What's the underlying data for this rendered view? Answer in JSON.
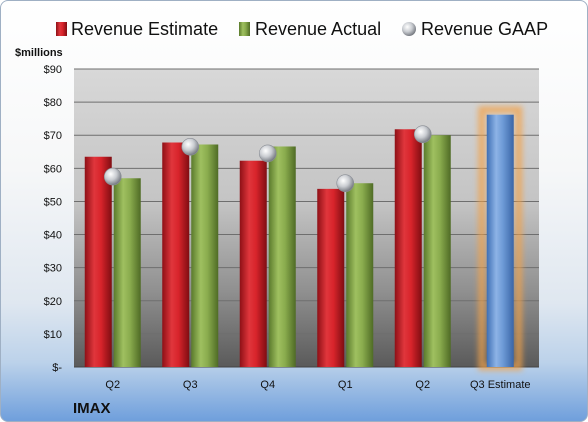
{
  "chart_data": {
    "type": "bar",
    "unit_label": "$millions",
    "company": "IMAX",
    "categories": [
      "Q2",
      "Q3",
      "Q4",
      "Q1",
      "Q2",
      "Q3 Estimate"
    ],
    "ylim": [
      0,
      90
    ],
    "y_ticks": [
      "$-",
      "$10",
      "$20",
      "$30",
      "$40",
      "$50",
      "$60",
      "$70",
      "$80",
      "$90"
    ],
    "y_tick_values": [
      0,
      10,
      20,
      30,
      40,
      50,
      60,
      70,
      80,
      90
    ],
    "grid": true,
    "legend_position": "top",
    "series": [
      {
        "name": "Revenue Estimate",
        "kind": "bar",
        "color": "#d8242b",
        "values": [
          63.5,
          67.8,
          62.3,
          53.8,
          71.8,
          null
        ]
      },
      {
        "name": "Revenue Actual",
        "kind": "bar",
        "color": "#8aac4e",
        "values": [
          57.0,
          67.2,
          66.6,
          55.5,
          70.0,
          null
        ]
      },
      {
        "name": "Revenue GAAP",
        "kind": "marker",
        "color": "#b9bdc4",
        "values": [
          57.5,
          66.5,
          64.5,
          55.5,
          70.3,
          null
        ]
      },
      {
        "name": "Q3 Estimate",
        "kind": "bar",
        "color": "#6d9ad6",
        "highlight": "#f2a24a",
        "values": [
          null,
          null,
          null,
          null,
          null,
          76.2
        ]
      }
    ]
  }
}
